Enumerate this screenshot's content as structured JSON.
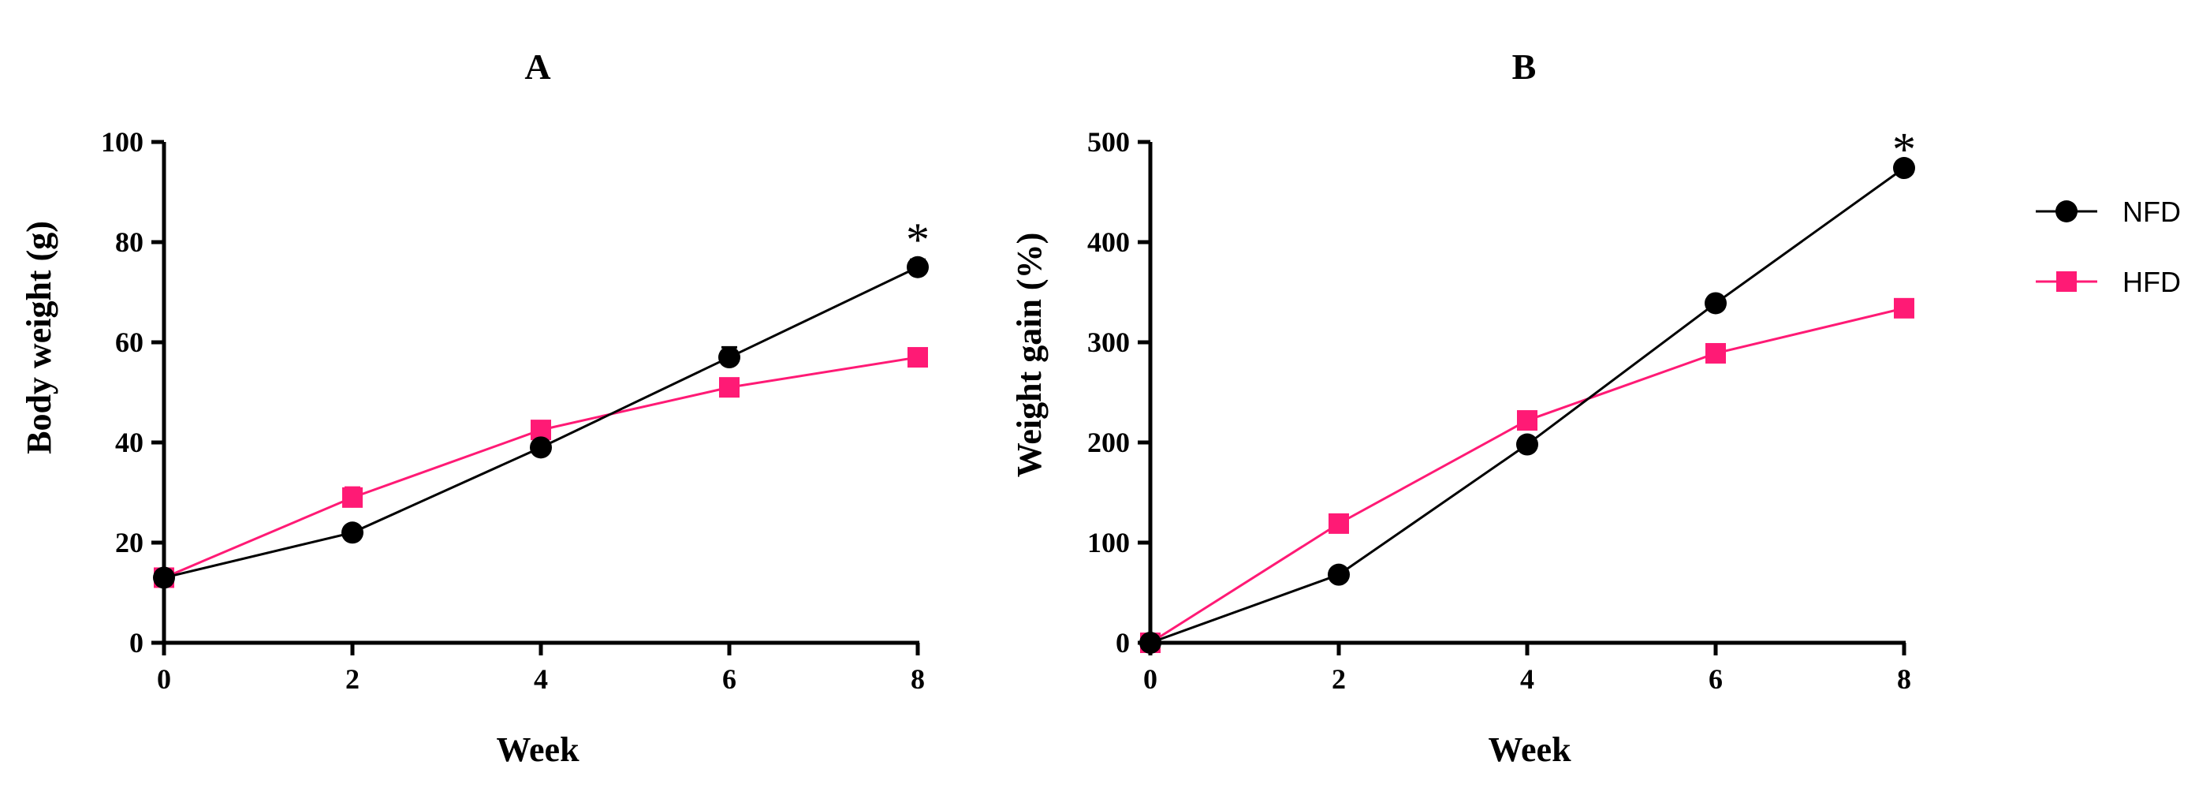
{
  "chart_data": [
    {
      "type": "line",
      "panel": "A",
      "title": "A",
      "xlabel": "Week",
      "ylabel": "Body weight (g)",
      "x": [
        0,
        2,
        4,
        6,
        8
      ],
      "xlim": [
        0,
        8
      ],
      "ylim": [
        0,
        100
      ],
      "xticks": [
        0,
        2,
        4,
        6,
        8
      ],
      "yticks": [
        0,
        20,
        40,
        60,
        80,
        100
      ],
      "series": [
        {
          "name": "NFD",
          "marker": "circle",
          "color": "#000000",
          "values": [
            13,
            22,
            39,
            57,
            75
          ],
          "error": [
            1,
            1,
            1,
            2,
            1.5
          ]
        },
        {
          "name": "HFD",
          "marker": "square",
          "color": "#ff1a75",
          "values": [
            13,
            29,
            42.5,
            51,
            57
          ],
          "error": [
            1,
            2,
            1.5,
            1,
            1
          ]
        }
      ],
      "annotations": [
        {
          "text": "*",
          "x": 8,
          "y": 83
        }
      ]
    },
    {
      "type": "line",
      "panel": "B",
      "title": "B",
      "xlabel": "Week",
      "ylabel": "Weight gain (%)",
      "x": [
        0,
        2,
        4,
        6,
        8
      ],
      "xlim": [
        0,
        8
      ],
      "ylim": [
        0,
        500
      ],
      "xticks": [
        0,
        2,
        4,
        6,
        8
      ],
      "yticks": [
        0,
        100,
        200,
        300,
        400,
        500
      ],
      "series": [
        {
          "name": "NFD",
          "marker": "circle",
          "color": "#000000",
          "values": [
            0,
            68,
            198,
            339,
            474
          ]
        },
        {
          "name": "HFD",
          "marker": "square",
          "color": "#ff1a75",
          "values": [
            0,
            119,
            222,
            289,
            334
          ]
        }
      ],
      "annotations": [
        {
          "text": "*",
          "x": 8,
          "y": 505
        }
      ]
    }
  ],
  "legend": {
    "placement": "right",
    "entries": [
      {
        "name": "NFD",
        "marker": "circle",
        "color": "#000000"
      },
      {
        "name": "HFD",
        "marker": "square",
        "color": "#ff1a75"
      }
    ]
  }
}
